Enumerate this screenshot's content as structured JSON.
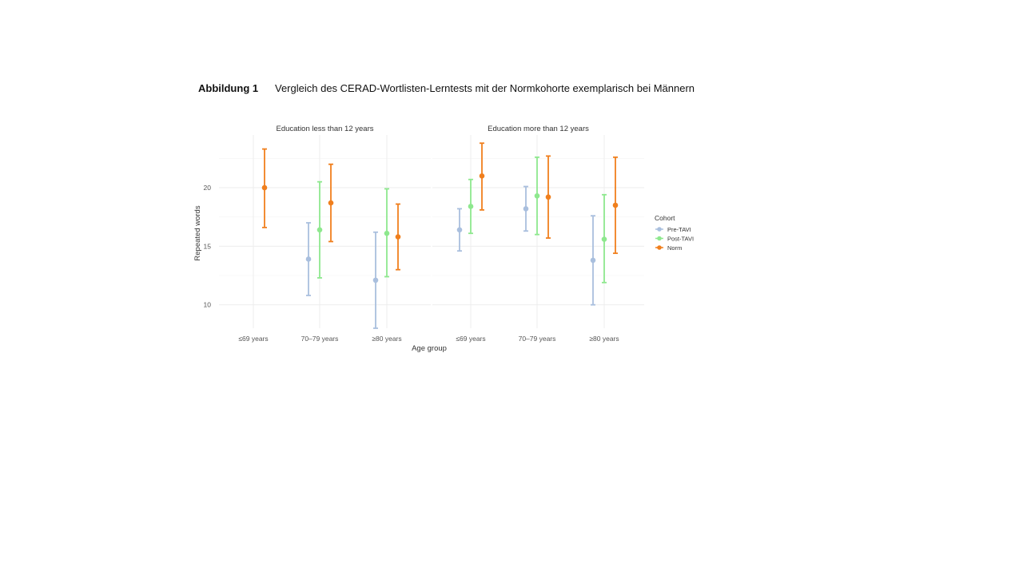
{
  "caption": {
    "label": "Abbildung 1",
    "text": "Vergleich des CERAD-Wortlisten-Lerntests mit der Normkohorte exemplarisch bei Männern"
  },
  "colors": {
    "pre_tavi": "#a9bfde",
    "post_tavi": "#8ee88e",
    "norm": "#f07f1d",
    "grid": "#ececec",
    "axis_text": "#555555"
  },
  "chart_data": {
    "type": "errorbar",
    "xlabel": "Age group",
    "ylabel": "Repeated words",
    "ylim": [
      8,
      24.5
    ],
    "yticks": [
      10,
      15,
      20
    ],
    "categories": [
      "≤69 years",
      "70–79 years",
      "≥80 years"
    ],
    "legend": {
      "title": "Cohort",
      "position": "right",
      "entries": [
        "Pre-TAVI",
        "Post-TAVI",
        "Norm"
      ]
    },
    "panels": [
      {
        "title": "Education less than 12 years",
        "series": [
          {
            "name": "Pre-TAVI",
            "mean": [
              null,
              13.9,
              12.1
            ],
            "lower": [
              null,
              10.8,
              8.0
            ],
            "upper": [
              null,
              17.0,
              16.2
            ]
          },
          {
            "name": "Post-TAVI",
            "mean": [
              null,
              16.4,
              16.1
            ],
            "lower": [
              null,
              12.3,
              12.4
            ],
            "upper": [
              null,
              20.5,
              19.9
            ]
          },
          {
            "name": "Norm",
            "mean": [
              20.0,
              18.7,
              15.8
            ],
            "lower": [
              16.6,
              15.4,
              13.0
            ],
            "upper": [
              23.3,
              22.0,
              18.6
            ]
          }
        ]
      },
      {
        "title": "Education more than 12 years",
        "series": [
          {
            "name": "Pre-TAVI",
            "mean": [
              16.4,
              18.2,
              13.8
            ],
            "lower": [
              14.6,
              16.3,
              10.0
            ],
            "upper": [
              18.2,
              20.1,
              17.6
            ]
          },
          {
            "name": "Post-TAVI",
            "mean": [
              18.4,
              19.3,
              15.6
            ],
            "lower": [
              16.1,
              16.0,
              11.9
            ],
            "upper": [
              20.7,
              22.6,
              19.4
            ]
          },
          {
            "name": "Norm",
            "mean": [
              21.0,
              19.2,
              18.5
            ],
            "lower": [
              18.1,
              15.7,
              14.4
            ],
            "upper": [
              23.8,
              22.7,
              22.6
            ]
          }
        ]
      }
    ]
  }
}
